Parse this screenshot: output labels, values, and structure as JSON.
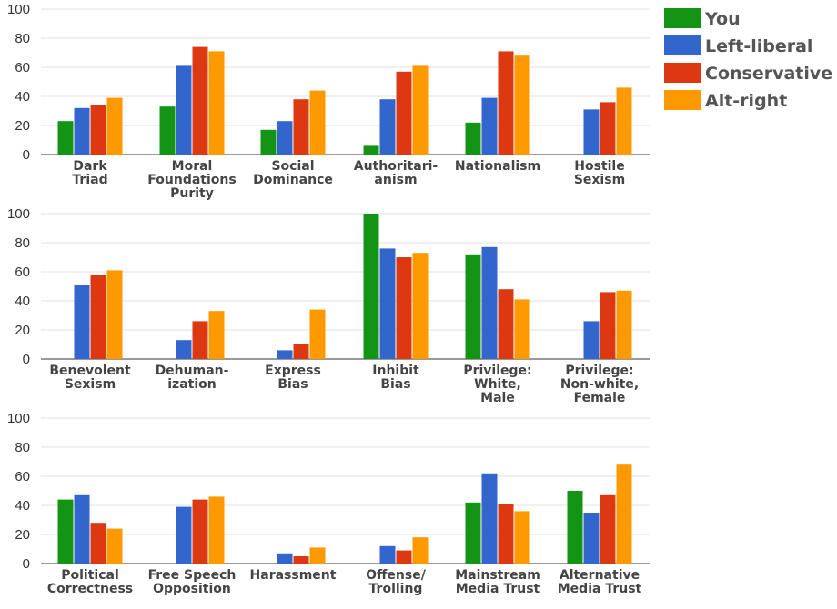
{
  "chart_data": [
    {
      "type": "bar",
      "categories": [
        [
          "Dark",
          "Triad"
        ],
        [
          "Moral",
          "Foundations",
          "Purity"
        ],
        [
          "Social",
          "Dominance"
        ],
        [
          "Authoritari-",
          "anism"
        ],
        [
          "Nationalism"
        ],
        [
          "Hostile",
          "Sexism"
        ]
      ],
      "ylim": [
        0,
        100
      ],
      "yticks": [
        0,
        20,
        40,
        60,
        80,
        100
      ],
      "series": [
        {
          "name": "You",
          "values": [
            23,
            33,
            17,
            6,
            22,
            0
          ]
        },
        {
          "name": "Left-liberal",
          "values": [
            32,
            61,
            23,
            38,
            39,
            31
          ]
        },
        {
          "name": "Conservative",
          "values": [
            34,
            74,
            38,
            57,
            71,
            36
          ]
        },
        {
          "name": "Alt-right",
          "values": [
            39,
            71,
            44,
            61,
            68,
            46
          ]
        }
      ]
    },
    {
      "type": "bar",
      "categories": [
        [
          "Benevolent",
          "Sexism"
        ],
        [
          "Dehuman-",
          "ization"
        ],
        [
          "Express",
          "Bias"
        ],
        [
          "Inhibit",
          "Bias"
        ],
        [
          "Privilege:",
          "White,",
          "Male"
        ],
        [
          "Privilege:",
          "Non-white,",
          "Female"
        ]
      ],
      "ylim": [
        0,
        100
      ],
      "yticks": [
        0,
        20,
        40,
        60,
        80,
        100
      ],
      "series": [
        {
          "name": "You",
          "values": [
            0,
            0,
            0,
            100,
            72,
            0
          ]
        },
        {
          "name": "Left-liberal",
          "values": [
            51,
            13,
            6,
            76,
            77,
            26
          ]
        },
        {
          "name": "Conservative",
          "values": [
            58,
            26,
            10,
            70,
            48,
            46
          ]
        },
        {
          "name": "Alt-right",
          "values": [
            61,
            33,
            34,
            73,
            41,
            47
          ]
        }
      ]
    },
    {
      "type": "bar",
      "categories": [
        [
          "Political",
          "Correctness"
        ],
        [
          "Free Speech",
          "Opposition"
        ],
        [
          "Harassment"
        ],
        [
          "Offense/",
          "Trolling"
        ],
        [
          "Mainstream",
          "Media Trust"
        ],
        [
          "Alternative",
          "Media Trust"
        ]
      ],
      "ylim": [
        0,
        100
      ],
      "yticks": [
        0,
        20,
        40,
        60,
        80,
        100
      ],
      "series": [
        {
          "name": "You",
          "values": [
            44,
            0,
            0,
            0,
            42,
            50
          ]
        },
        {
          "name": "Left-liberal",
          "values": [
            47,
            39,
            7,
            12,
            62,
            35
          ]
        },
        {
          "name": "Conservative",
          "values": [
            28,
            44,
            5,
            9,
            41,
            47
          ]
        },
        {
          "name": "Alt-right",
          "values": [
            24,
            46,
            11,
            18,
            36,
            68
          ]
        }
      ]
    }
  ],
  "legend": {
    "placement": "top-right",
    "items": [
      {
        "label": "You",
        "color": "#149414"
      },
      {
        "label": "Left-liberal",
        "color": "#3366cc"
      },
      {
        "label": "Conservative",
        "color": "#dc3912"
      },
      {
        "label": "Alt-right",
        "color": "#ff9900"
      }
    ]
  },
  "grid": true
}
